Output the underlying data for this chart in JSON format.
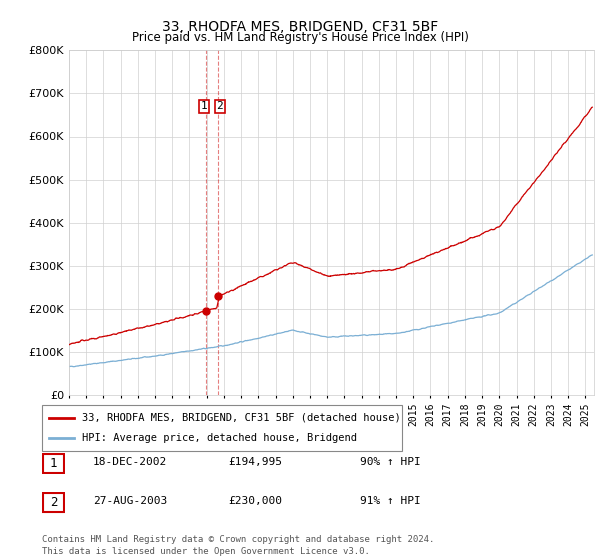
{
  "title": "33, RHODFA MES, BRIDGEND, CF31 5BF",
  "subtitle": "Price paid vs. HM Land Registry's House Price Index (HPI)",
  "ylim": [
    0,
    800000
  ],
  "yticks": [
    0,
    100000,
    200000,
    300000,
    400000,
    500000,
    600000,
    700000,
    800000
  ],
  "red_line_color": "#cc0000",
  "blue_line_color": "#7bafd4",
  "sale1_x": 2002.96,
  "sale1_y": 194995,
  "sale2_x": 2003.65,
  "sale2_y": 230000,
  "vline_x1": 2002.96,
  "vline_x2": 2003.65,
  "legend_red": "33, RHODFA MES, BRIDGEND, CF31 5BF (detached house)",
  "legend_blue": "HPI: Average price, detached house, Bridgend",
  "table_rows": [
    [
      "1",
      "18-DEC-2002",
      "£194,995",
      "90% ↑ HPI"
    ],
    [
      "2",
      "27-AUG-2003",
      "£230,000",
      "91% ↑ HPI"
    ]
  ],
  "footer": "Contains HM Land Registry data © Crown copyright and database right 2024.\nThis data is licensed under the Open Government Licence v3.0.",
  "xlim_start": 1995.0,
  "xlim_end": 2025.5
}
